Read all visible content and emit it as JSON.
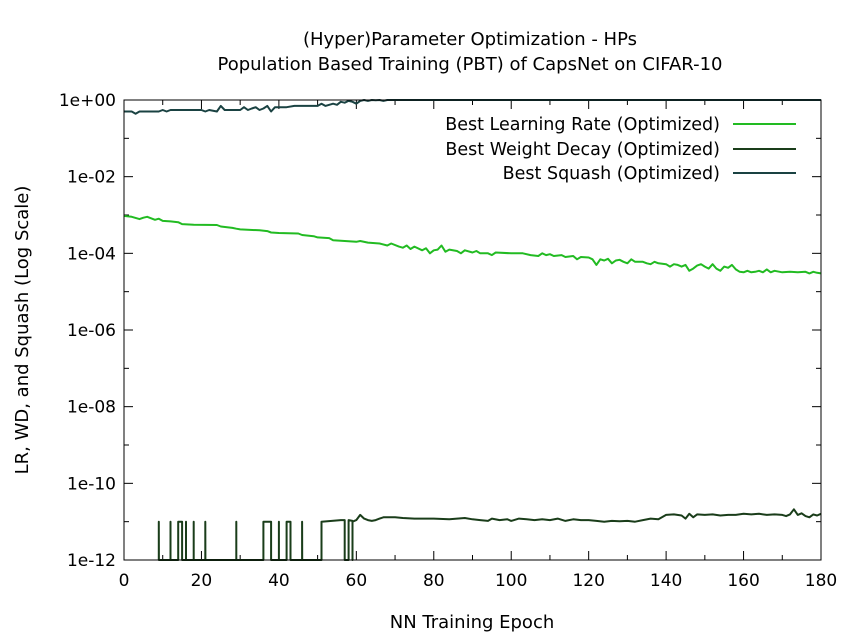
{
  "chart_data": {
    "type": "line",
    "title_lines": [
      "(Hyper)Parameter Optimization - HPs",
      "Population Based Training (PBT) of CapsNet on CIFAR-10"
    ],
    "xlabel": "NN Training Epoch",
    "ylabel": "LR, WD, and Squash (Log Scale)",
    "xlim": [
      0,
      180
    ],
    "ylim_log10": [
      -12,
      0
    ],
    "x_ticks": [
      "0",
      "20",
      "40",
      "60",
      "80",
      "100",
      "120",
      "140",
      "160",
      "180"
    ],
    "y_ticks": [
      "1e+00",
      "1e-02",
      "1e-04",
      "1e-06",
      "1e-08",
      "1e-10",
      "1e-12"
    ],
    "legend_position": "top-right",
    "series": [
      {
        "name": "Best Learning Rate (Optimized)",
        "color": "#22bb22",
        "points": [
          [
            0,
            0.00095
          ],
          [
            2,
            0.0009
          ],
          [
            4,
            0.00078
          ],
          [
            5,
            0.00085
          ],
          [
            6,
            0.0009
          ],
          [
            8,
            0.00075
          ],
          [
            9,
            0.0008
          ],
          [
            10,
            0.0007
          ],
          [
            12,
            0.00068
          ],
          [
            14,
            0.00065
          ],
          [
            15,
            0.00058
          ],
          [
            18,
            0.00056
          ],
          [
            24,
            0.00055
          ],
          [
            25,
            0.0005
          ],
          [
            28,
            0.00046
          ],
          [
            29,
            0.00044
          ],
          [
            30,
            0.00042
          ],
          [
            35,
            0.0004
          ],
          [
            37,
            0.00038
          ],
          [
            38,
            0.00035
          ],
          [
            40,
            0.00034
          ],
          [
            45,
            0.00033
          ],
          [
            46,
            0.0003
          ],
          [
            49,
            0.00028
          ],
          [
            50,
            0.00026
          ],
          [
            53,
            0.00025
          ],
          [
            54,
            0.00022
          ],
          [
            57,
            0.00021
          ],
          [
            60,
            0.0002
          ],
          [
            61,
            0.00021
          ],
          [
            63,
            0.00019
          ],
          [
            66,
            0.00018
          ],
          [
            68,
            0.00016
          ],
          [
            69,
            0.00018
          ],
          [
            71,
            0.00015
          ],
          [
            72,
            0.00014
          ],
          [
            73,
            0.00016
          ],
          [
            74,
            0.00013
          ],
          [
            75,
            0.00015
          ],
          [
            77,
            0.00012
          ],
          [
            78,
            0.000135
          ],
          [
            79,
            0.0001
          ],
          [
            80,
            0.00012
          ],
          [
            81,
            0.000125
          ],
          [
            82,
            0.00016
          ],
          [
            83,
            0.00011
          ],
          [
            84,
            0.000125
          ],
          [
            86,
            0.000115
          ],
          [
            87,
            0.0001
          ],
          [
            88,
            0.00012
          ],
          [
            90,
            0.000105
          ],
          [
            91,
            0.000115
          ],
          [
            92,
            0.0001
          ],
          [
            94,
            0.0001
          ],
          [
            95,
            9e-05
          ],
          [
            96,
            0.000105
          ],
          [
            100,
            0.0001
          ],
          [
            103,
            0.0001
          ],
          [
            105,
            9e-05
          ],
          [
            107,
            8.5e-05
          ],
          [
            108,
            0.0001
          ],
          [
            109,
            9e-05
          ],
          [
            110,
            9.5e-05
          ],
          [
            111,
            8.5e-05
          ],
          [
            113,
            9e-05
          ],
          [
            114,
            8e-05
          ],
          [
            116,
            8.5e-05
          ],
          [
            117,
            7e-05
          ],
          [
            118,
            8e-05
          ],
          [
            120,
            7.8e-05
          ],
          [
            121,
            7e-05
          ],
          [
            122,
            5e-05
          ],
          [
            123,
            7e-05
          ],
          [
            124,
            6.5e-05
          ],
          [
            125,
            7.2e-05
          ],
          [
            126,
            5.5e-05
          ],
          [
            127,
            6.5e-05
          ],
          [
            128,
            6.8e-05
          ],
          [
            129,
            6e-05
          ],
          [
            130,
            5.5e-05
          ],
          [
            131,
            7e-05
          ],
          [
            132,
            6e-05
          ],
          [
            134,
            6e-05
          ],
          [
            135,
            5.5e-05
          ],
          [
            136,
            5.2e-05
          ],
          [
            137,
            6e-05
          ],
          [
            138,
            5.5e-05
          ],
          [
            140,
            5.2e-05
          ],
          [
            141,
            4.5e-05
          ],
          [
            142,
            5.2e-05
          ],
          [
            143,
            5e-05
          ],
          [
            144,
            4.5e-05
          ],
          [
            145,
            5e-05
          ],
          [
            146,
            3.5e-05
          ],
          [
            147,
            4e-05
          ],
          [
            148,
            4.8e-05
          ],
          [
            149,
            5.2e-05
          ],
          [
            150,
            4.5e-05
          ],
          [
            151,
            4e-05
          ],
          [
            152,
            5.2e-05
          ],
          [
            153,
            4e-05
          ],
          [
            154,
            3.5e-05
          ],
          [
            155,
            4.5e-05
          ],
          [
            156,
            4.2e-05
          ],
          [
            157,
            5e-05
          ],
          [
            158,
            3.8e-05
          ],
          [
            159,
            3.3e-05
          ],
          [
            160,
            3.2e-05
          ],
          [
            161,
            3.5e-05
          ],
          [
            162,
            3.2e-05
          ],
          [
            163,
            3.3e-05
          ],
          [
            164,
            3.5e-05
          ],
          [
            165,
            3.2e-05
          ],
          [
            166,
            3.8e-05
          ],
          [
            167,
            3.2e-05
          ],
          [
            168,
            3.5e-05
          ],
          [
            170,
            3.2e-05
          ],
          [
            172,
            3.3e-05
          ],
          [
            174,
            3.2e-05
          ],
          [
            176,
            3.3e-05
          ],
          [
            177,
            3e-05
          ],
          [
            178,
            3.3e-05
          ],
          [
            179,
            3.1e-05
          ],
          [
            180,
            3e-05
          ]
        ]
      },
      {
        "name": "Best Weight Decay (Optimized)",
        "color": "#1a3d1a",
        "points": [
          [
            9,
            1e-12
          ],
          [
            9,
            1e-11
          ],
          [
            9.01,
            1e-12
          ],
          [
            12,
            1e-12
          ],
          [
            12,
            1e-11
          ],
          [
            12.01,
            1e-12
          ],
          [
            14,
            1e-12
          ],
          [
            14,
            1e-11
          ],
          [
            15,
            1e-11
          ],
          [
            15,
            1e-12
          ],
          [
            16,
            1e-12
          ],
          [
            16,
            1e-11
          ],
          [
            16.01,
            1e-12
          ],
          [
            18,
            1e-12
          ],
          [
            18,
            1e-11
          ],
          [
            18.01,
            1e-12
          ],
          [
            21,
            1e-12
          ],
          [
            21,
            1e-11
          ],
          [
            21.01,
            1e-12
          ],
          [
            29,
            1e-12
          ],
          [
            29,
            1e-11
          ],
          [
            29.01,
            1e-12
          ],
          [
            36,
            1e-12
          ],
          [
            36,
            1e-11
          ],
          [
            38,
            1e-11
          ],
          [
            38,
            1e-12
          ],
          [
            40,
            1e-12
          ],
          [
            40,
            1e-11
          ],
          [
            40.01,
            1e-12
          ],
          [
            42,
            1e-12
          ],
          [
            42,
            1e-11
          ],
          [
            43,
            1e-11
          ],
          [
            43,
            1e-12
          ],
          [
            46,
            1e-12
          ],
          [
            46,
            1e-11
          ],
          [
            46.01,
            1e-12
          ],
          [
            51,
            1e-12
          ],
          [
            51,
            1e-11
          ],
          [
            56,
            1.1e-11
          ],
          [
            57,
            1.1e-11
          ],
          [
            57,
            1e-12
          ],
          [
            58,
            1e-12
          ],
          [
            58,
            1.1e-11
          ],
          [
            59,
            1.05e-11
          ],
          [
            59,
            1e-12
          ],
          [
            59.01,
            1e-11
          ],
          [
            60,
            1.1e-11
          ],
          [
            61,
            1.5e-11
          ],
          [
            62,
            1.2e-11
          ],
          [
            63,
            1.1e-11
          ],
          [
            64,
            1.05e-11
          ],
          [
            65,
            1.1e-11
          ],
          [
            66,
            1.2e-11
          ],
          [
            67,
            1.3e-11
          ],
          [
            70,
            1.3e-11
          ],
          [
            72,
            1.25e-11
          ],
          [
            75,
            1.2e-11
          ],
          [
            80,
            1.2e-11
          ],
          [
            84,
            1.15e-11
          ],
          [
            88,
            1.25e-11
          ],
          [
            90,
            1.15e-11
          ],
          [
            92,
            1.1e-11
          ],
          [
            94,
            1.05e-11
          ],
          [
            95,
            1.2e-11
          ],
          [
            97,
            1.1e-11
          ],
          [
            99,
            1.15e-11
          ],
          [
            100,
            1.05e-11
          ],
          [
            102,
            1.2e-11
          ],
          [
            104,
            1.15e-11
          ],
          [
            106,
            1.1e-11
          ],
          [
            108,
            1.15e-11
          ],
          [
            110,
            1.1e-11
          ],
          [
            112,
            1.2e-11
          ],
          [
            114,
            1.05e-11
          ],
          [
            116,
            1.15e-11
          ],
          [
            118,
            1.1e-11
          ],
          [
            120,
            1.1e-11
          ],
          [
            122,
            1.05e-11
          ],
          [
            124,
            1e-11
          ],
          [
            126,
            1.05e-11
          ],
          [
            128,
            1.02e-11
          ],
          [
            130,
            1.05e-11
          ],
          [
            132,
            1e-11
          ],
          [
            134,
            1.1e-11
          ],
          [
            136,
            1.2e-11
          ],
          [
            138,
            1.15e-11
          ],
          [
            140,
            1.5e-11
          ],
          [
            142,
            1.55e-11
          ],
          [
            144,
            1.45e-11
          ],
          [
            145,
            1.2e-11
          ],
          [
            146,
            1.6e-11
          ],
          [
            147,
            1.3e-11
          ],
          [
            148,
            1.55e-11
          ],
          [
            150,
            1.5e-11
          ],
          [
            152,
            1.55e-11
          ],
          [
            154,
            1.45e-11
          ],
          [
            156,
            1.5e-11
          ],
          [
            158,
            1.5e-11
          ],
          [
            160,
            1.6e-11
          ],
          [
            162,
            1.55e-11
          ],
          [
            164,
            1.6e-11
          ],
          [
            166,
            1.5e-11
          ],
          [
            168,
            1.55e-11
          ],
          [
            170,
            1.5e-11
          ],
          [
            171,
            1.4e-11
          ],
          [
            172,
            1.55e-11
          ],
          [
            173,
            2.1e-11
          ],
          [
            174,
            1.5e-11
          ],
          [
            175,
            1.65e-11
          ],
          [
            176,
            1.4e-11
          ],
          [
            177,
            1.3e-11
          ],
          [
            178,
            1.55e-11
          ],
          [
            179,
            1.45e-11
          ],
          [
            180,
            1.6e-11
          ]
        ]
      },
      {
        "name": "Best Squash (Optimized)",
        "color": "#1a4242",
        "points": [
          [
            0,
            0.5
          ],
          [
            2,
            0.5
          ],
          [
            3,
            0.44
          ],
          [
            4,
            0.5
          ],
          [
            9,
            0.5
          ],
          [
            10,
            0.55
          ],
          [
            11,
            0.5
          ],
          [
            12,
            0.55
          ],
          [
            20,
            0.55
          ],
          [
            21,
            0.5
          ],
          [
            22,
            0.55
          ],
          [
            24,
            0.5
          ],
          [
            25,
            0.7
          ],
          [
            26,
            0.55
          ],
          [
            30,
            0.55
          ],
          [
            31,
            0.65
          ],
          [
            32,
            0.55
          ],
          [
            33,
            0.6
          ],
          [
            34,
            0.65
          ],
          [
            35,
            0.55
          ],
          [
            36,
            0.6
          ],
          [
            37,
            0.7
          ],
          [
            38,
            0.5
          ],
          [
            39,
            0.65
          ],
          [
            42,
            0.65
          ],
          [
            44,
            0.7
          ],
          [
            46,
            0.7
          ],
          [
            50,
            0.7
          ],
          [
            51,
            0.8
          ],
          [
            52,
            0.7
          ],
          [
            54,
            0.8
          ],
          [
            55,
            0.75
          ],
          [
            56,
            0.9
          ],
          [
            57,
            0.85
          ],
          [
            58,
            0.95
          ],
          [
            59,
            0.9
          ],
          [
            60,
            0.8
          ],
          [
            61,
            0.95
          ],
          [
            62,
            1.0
          ],
          [
            63,
            0.95
          ],
          [
            64,
            1.0
          ],
          [
            65,
            0.98
          ],
          [
            66,
            1.0
          ],
          [
            67,
            0.95
          ],
          [
            68,
            1.0
          ],
          [
            180,
            1.0
          ]
        ]
      }
    ]
  }
}
